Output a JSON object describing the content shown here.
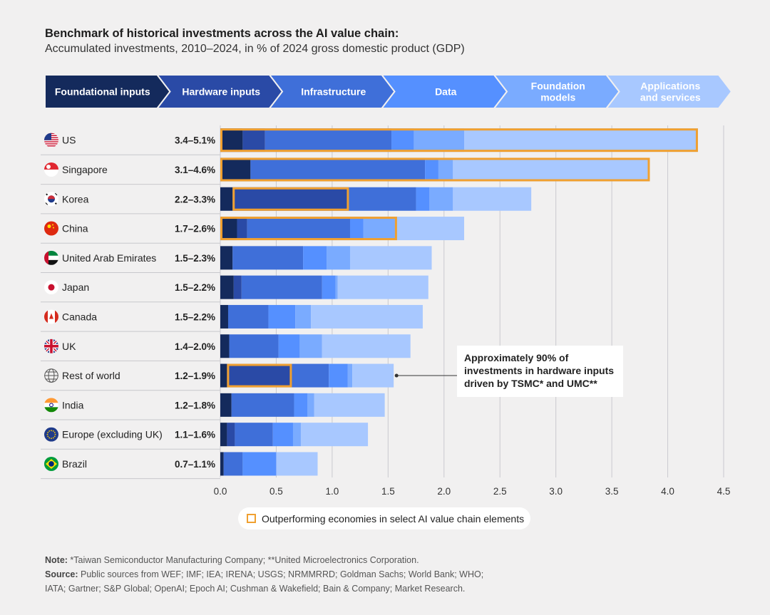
{
  "header": {
    "title": "Benchmark of historical investments across the AI value chain:",
    "subtitle": "Accumulated investments, 2010–2024, in % of 2024 gross domestic product (GDP)"
  },
  "stages": [
    {
      "id": "foundational",
      "label_lines": [
        "Foundational inputs"
      ],
      "color": "#142a5c"
    },
    {
      "id": "hardware",
      "label_lines": [
        "Hardware inputs"
      ],
      "color": "#2a4aa6"
    },
    {
      "id": "infrastructure",
      "label_lines": [
        "Infrastructure"
      ],
      "color": "#3f6fd9"
    },
    {
      "id": "data",
      "label_lines": [
        "Data"
      ],
      "color": "#5590ff"
    },
    {
      "id": "foundation_models",
      "label_lines": [
        "Foundation",
        "models"
      ],
      "color": "#7aabff"
    },
    {
      "id": "applications",
      "label_lines": [
        "Applications",
        "and services"
      ],
      "color": "#a8c8ff"
    }
  ],
  "chart_data": {
    "type": "bar",
    "orientation": "horizontal",
    "stacked": true,
    "title": "Benchmark of historical investments across the AI value chain:",
    "subtitle": "Accumulated investments, 2010–2024, in % of 2024 gross domestic product (GDP)",
    "xlim": [
      0,
      4.5
    ],
    "xticks": [
      0.0,
      0.5,
      1.0,
      1.5,
      2.0,
      2.5,
      3.0,
      3.5,
      4.0,
      4.5
    ],
    "xtick_labels": [
      "0.0",
      "0.5",
      "1.0",
      "1.5",
      "2.0",
      "2.5",
      "3.0",
      "3.5",
      "4.0",
      "4.5"
    ],
    "grid": "vertical",
    "series_names": [
      "Foundational inputs",
      "Hardware inputs",
      "Infrastructure",
      "Data",
      "Foundation models",
      "Applications and services"
    ],
    "series_colors": [
      "#142a5c",
      "#2a4aa6",
      "#3f6fd9",
      "#5590ff",
      "#7aabff",
      "#a8c8ff"
    ],
    "rows": [
      {
        "country": "US",
        "flag": "us-flag-icon",
        "range": "3.4–5.1%",
        "values": [
          0.2,
          0.2,
          1.13,
          0.2,
          0.45,
          2.09
        ],
        "highlight": [
          0,
          6
        ]
      },
      {
        "country": "Singapore",
        "flag": "singapore-flag-icon",
        "range": "3.1–4.6%",
        "values": [
          0.27,
          0.0,
          1.56,
          0.12,
          0.13,
          1.76
        ],
        "highlight": [
          0,
          6
        ]
      },
      {
        "country": "Korea",
        "flag": "korea-flag-icon",
        "range": "2.2–3.3%",
        "values": [
          0.11,
          1.04,
          0.6,
          0.12,
          0.21,
          0.7
        ],
        "highlight": [
          1,
          2
        ]
      },
      {
        "country": "China",
        "flag": "china-flag-icon",
        "range": "1.7–2.6%",
        "values": [
          0.15,
          0.09,
          0.92,
          0.12,
          0.3,
          0.6
        ],
        "highlight": [
          0,
          5
        ]
      },
      {
        "country": "United Arab Emirates",
        "flag": "uae-flag-icon",
        "range": "1.5–2.3%",
        "values": [
          0.11,
          0.0,
          0.63,
          0.21,
          0.21,
          0.73
        ],
        "highlight": null
      },
      {
        "country": "Japan",
        "flag": "japan-flag-icon",
        "range": "1.5–2.2%",
        "values": [
          0.12,
          0.07,
          0.72,
          0.12,
          0.02,
          0.81
        ],
        "highlight": null
      },
      {
        "country": "Canada",
        "flag": "canada-flag-icon",
        "range": "1.5–2.2%",
        "values": [
          0.07,
          0.0,
          0.36,
          0.24,
          0.14,
          1.0
        ],
        "highlight": null
      },
      {
        "country": "UK",
        "flag": "uk-flag-icon",
        "range": "1.4–2.0%",
        "values": [
          0.08,
          0.0,
          0.44,
          0.19,
          0.2,
          0.79
        ],
        "highlight": null
      },
      {
        "country": "Rest of world",
        "flag": "globe-icon",
        "range": "1.2–1.9%",
        "values": [
          0.06,
          0.58,
          0.33,
          0.17,
          0.04,
          0.37
        ],
        "highlight": [
          1,
          2
        ]
      },
      {
        "country": "India",
        "flag": "india-flag-icon",
        "range": "1.2–1.8%",
        "values": [
          0.1,
          0.0,
          0.56,
          0.12,
          0.06,
          0.63
        ],
        "highlight": null
      },
      {
        "country": "Europe (excluding UK)",
        "flag": "eu-flag-icon",
        "range": "1.1–1.6%",
        "values": [
          0.06,
          0.07,
          0.34,
          0.18,
          0.07,
          0.6
        ],
        "highlight": null
      },
      {
        "country": "Brazil",
        "flag": "brazil-flag-icon",
        "range": "0.7–1.1%",
        "values": [
          0.03,
          0.0,
          0.17,
          0.3,
          0.0,
          0.37
        ],
        "highlight": null
      }
    ],
    "annotation": {
      "text": "Approximately 90% of investments in hardware inputs driven by TSMC* and UMC**",
      "target_row": "Rest of world"
    },
    "highlight_color": "#f0a030"
  },
  "callout": {
    "line1": "Approximately 90% of",
    "line2": "investments in hardware inputs",
    "line3": "driven by TSMC* and UMC**"
  },
  "legend": {
    "label": "Outperforming economies in select AI value chain elements"
  },
  "footer": {
    "note_label": "Note:",
    "note_text": " *Taiwan Semiconductor Manufacturing Company; **United Microelectronics Corporation.",
    "source_label": "Source:",
    "source_text": " Public sources from WEF; IMF; IEA; IRENA; USGS; NRMMRRD; Goldman Sachs; World Bank; WHO;",
    "source_text_2": "IATA; Gartner; S&P Global; OpenAI; Epoch AI; Cushman & Wakefield; Bain & Company; Market Research."
  }
}
